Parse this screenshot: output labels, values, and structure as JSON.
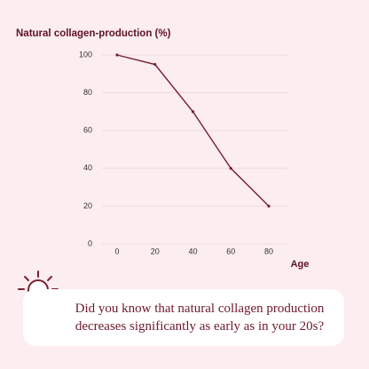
{
  "chart_data": {
    "type": "line",
    "title": "Natural collagen-production (%)",
    "x_label": "Age",
    "x": [
      0,
      20,
      40,
      60,
      80
    ],
    "values": [
      100,
      95,
      70,
      40,
      20
    ],
    "color": "#7a1f2e",
    "xlim": [
      0,
      80
    ],
    "xticks": [
      0,
      20,
      40,
      60,
      80
    ],
    "ylim": [
      0,
      100
    ],
    "yticks": [
      0,
      20,
      40,
      60,
      80,
      100
    ],
    "grid": true
  },
  "callout": {
    "text": "Did you know that natural collagen production decreases significantly as early as in your 20s?"
  }
}
